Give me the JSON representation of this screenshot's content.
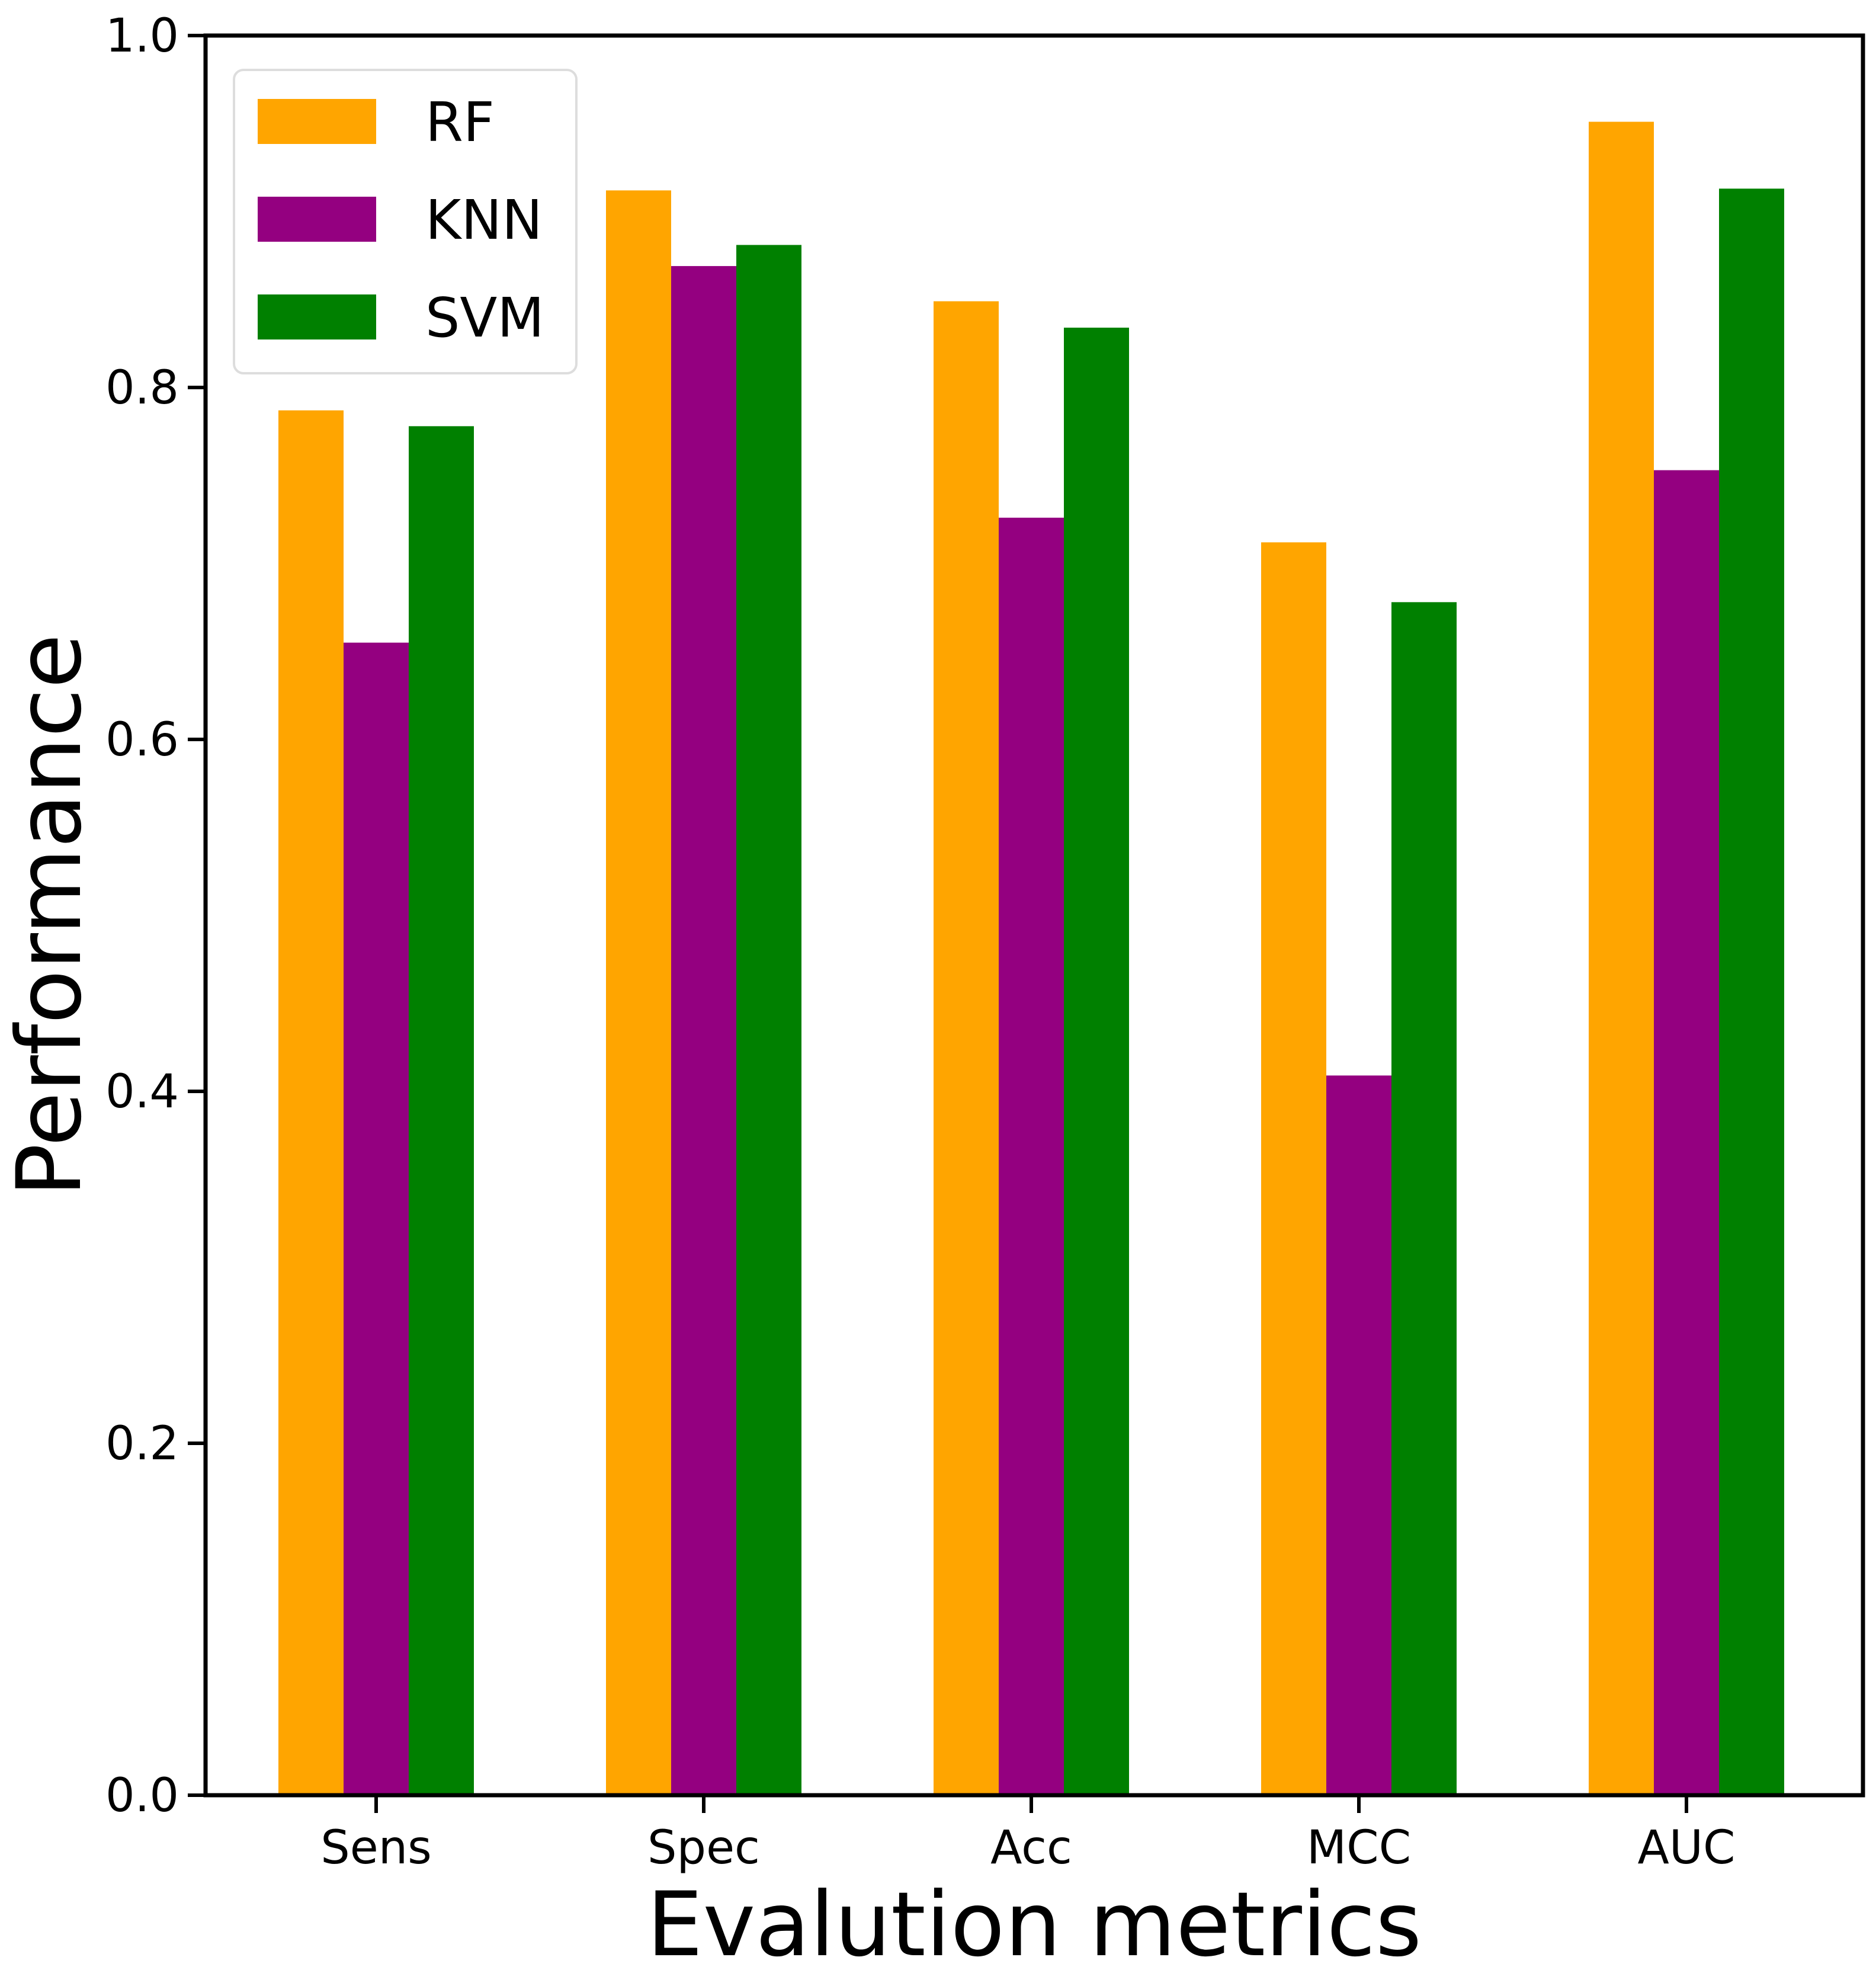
{
  "chart_data": {
    "type": "bar",
    "title": "",
    "xlabel": "Evalution metrics",
    "ylabel": "Performance",
    "categories": [
      "Sens",
      "Spec",
      "Acc",
      "MCC",
      "AUC"
    ],
    "series": [
      {
        "name": "RF",
        "color": "#FFA500",
        "values": [
          0.787,
          0.912,
          0.849,
          0.712,
          0.951
        ]
      },
      {
        "name": "KNN",
        "color": "#940080",
        "values": [
          0.655,
          0.869,
          0.726,
          0.409,
          0.753
        ]
      },
      {
        "name": "SVM",
        "color": "#008000",
        "values": [
          0.778,
          0.881,
          0.834,
          0.678,
          0.913
        ]
      }
    ],
    "ylim": [
      0,
      1.0
    ],
    "yticks": [
      "0.0",
      "0.2",
      "0.4",
      "0.6",
      "0.8",
      "1.0"
    ],
    "grid": false,
    "legend_position": "top-left"
  }
}
